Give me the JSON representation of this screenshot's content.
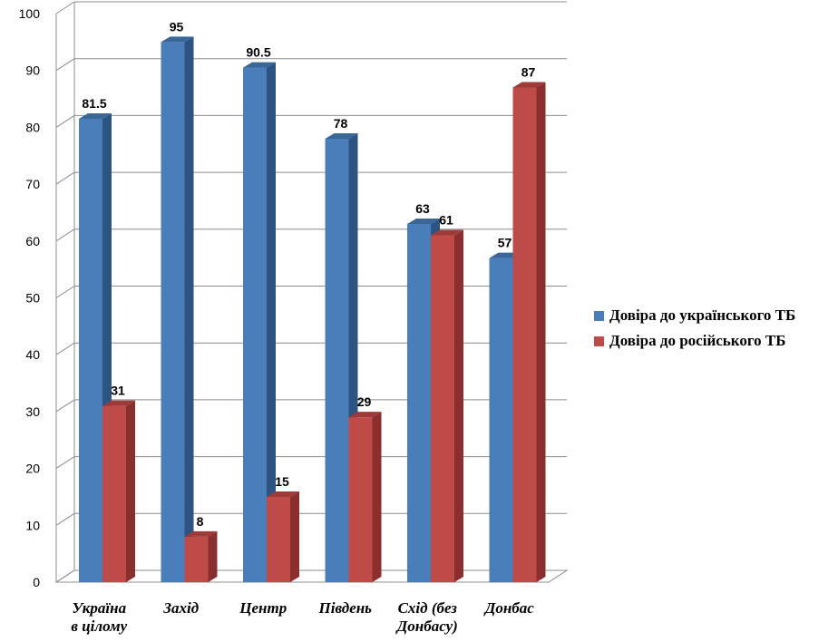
{
  "chart_data": {
    "type": "bar",
    "categories": [
      [
        "Україна",
        "в цілому"
      ],
      [
        "Захід"
      ],
      [
        "Центр"
      ],
      [
        "Південь"
      ],
      [
        "Схід (без",
        "Донбасу)"
      ],
      [
        "Донбас"
      ]
    ],
    "series": [
      {
        "name": "Довіра до українського ТБ",
        "color": "#4a7ebb",
        "side": "#2d5383",
        "top": "#3a6698",
        "values": [
          81.5,
          95,
          90.5,
          78,
          63,
          57
        ],
        "labels": [
          "81.5",
          "95",
          "90.5",
          "78",
          "63",
          "57"
        ]
      },
      {
        "name": "Довіра до російського ТБ",
        "color": "#be4b48",
        "side": "#8a2f2d",
        "top": "#9e3a37",
        "values": [
          31,
          8,
          15,
          29,
          61,
          87
        ],
        "labels": [
          "31",
          "8",
          "15",
          "29",
          "61",
          "87"
        ]
      }
    ],
    "ylim": [
      0,
      100
    ],
    "yticks": [
      "0",
      "10",
      "20",
      "30",
      "40",
      "50",
      "60",
      "70",
      "80",
      "90",
      "100"
    ],
    "grid": true,
    "legend_position": "right"
  }
}
